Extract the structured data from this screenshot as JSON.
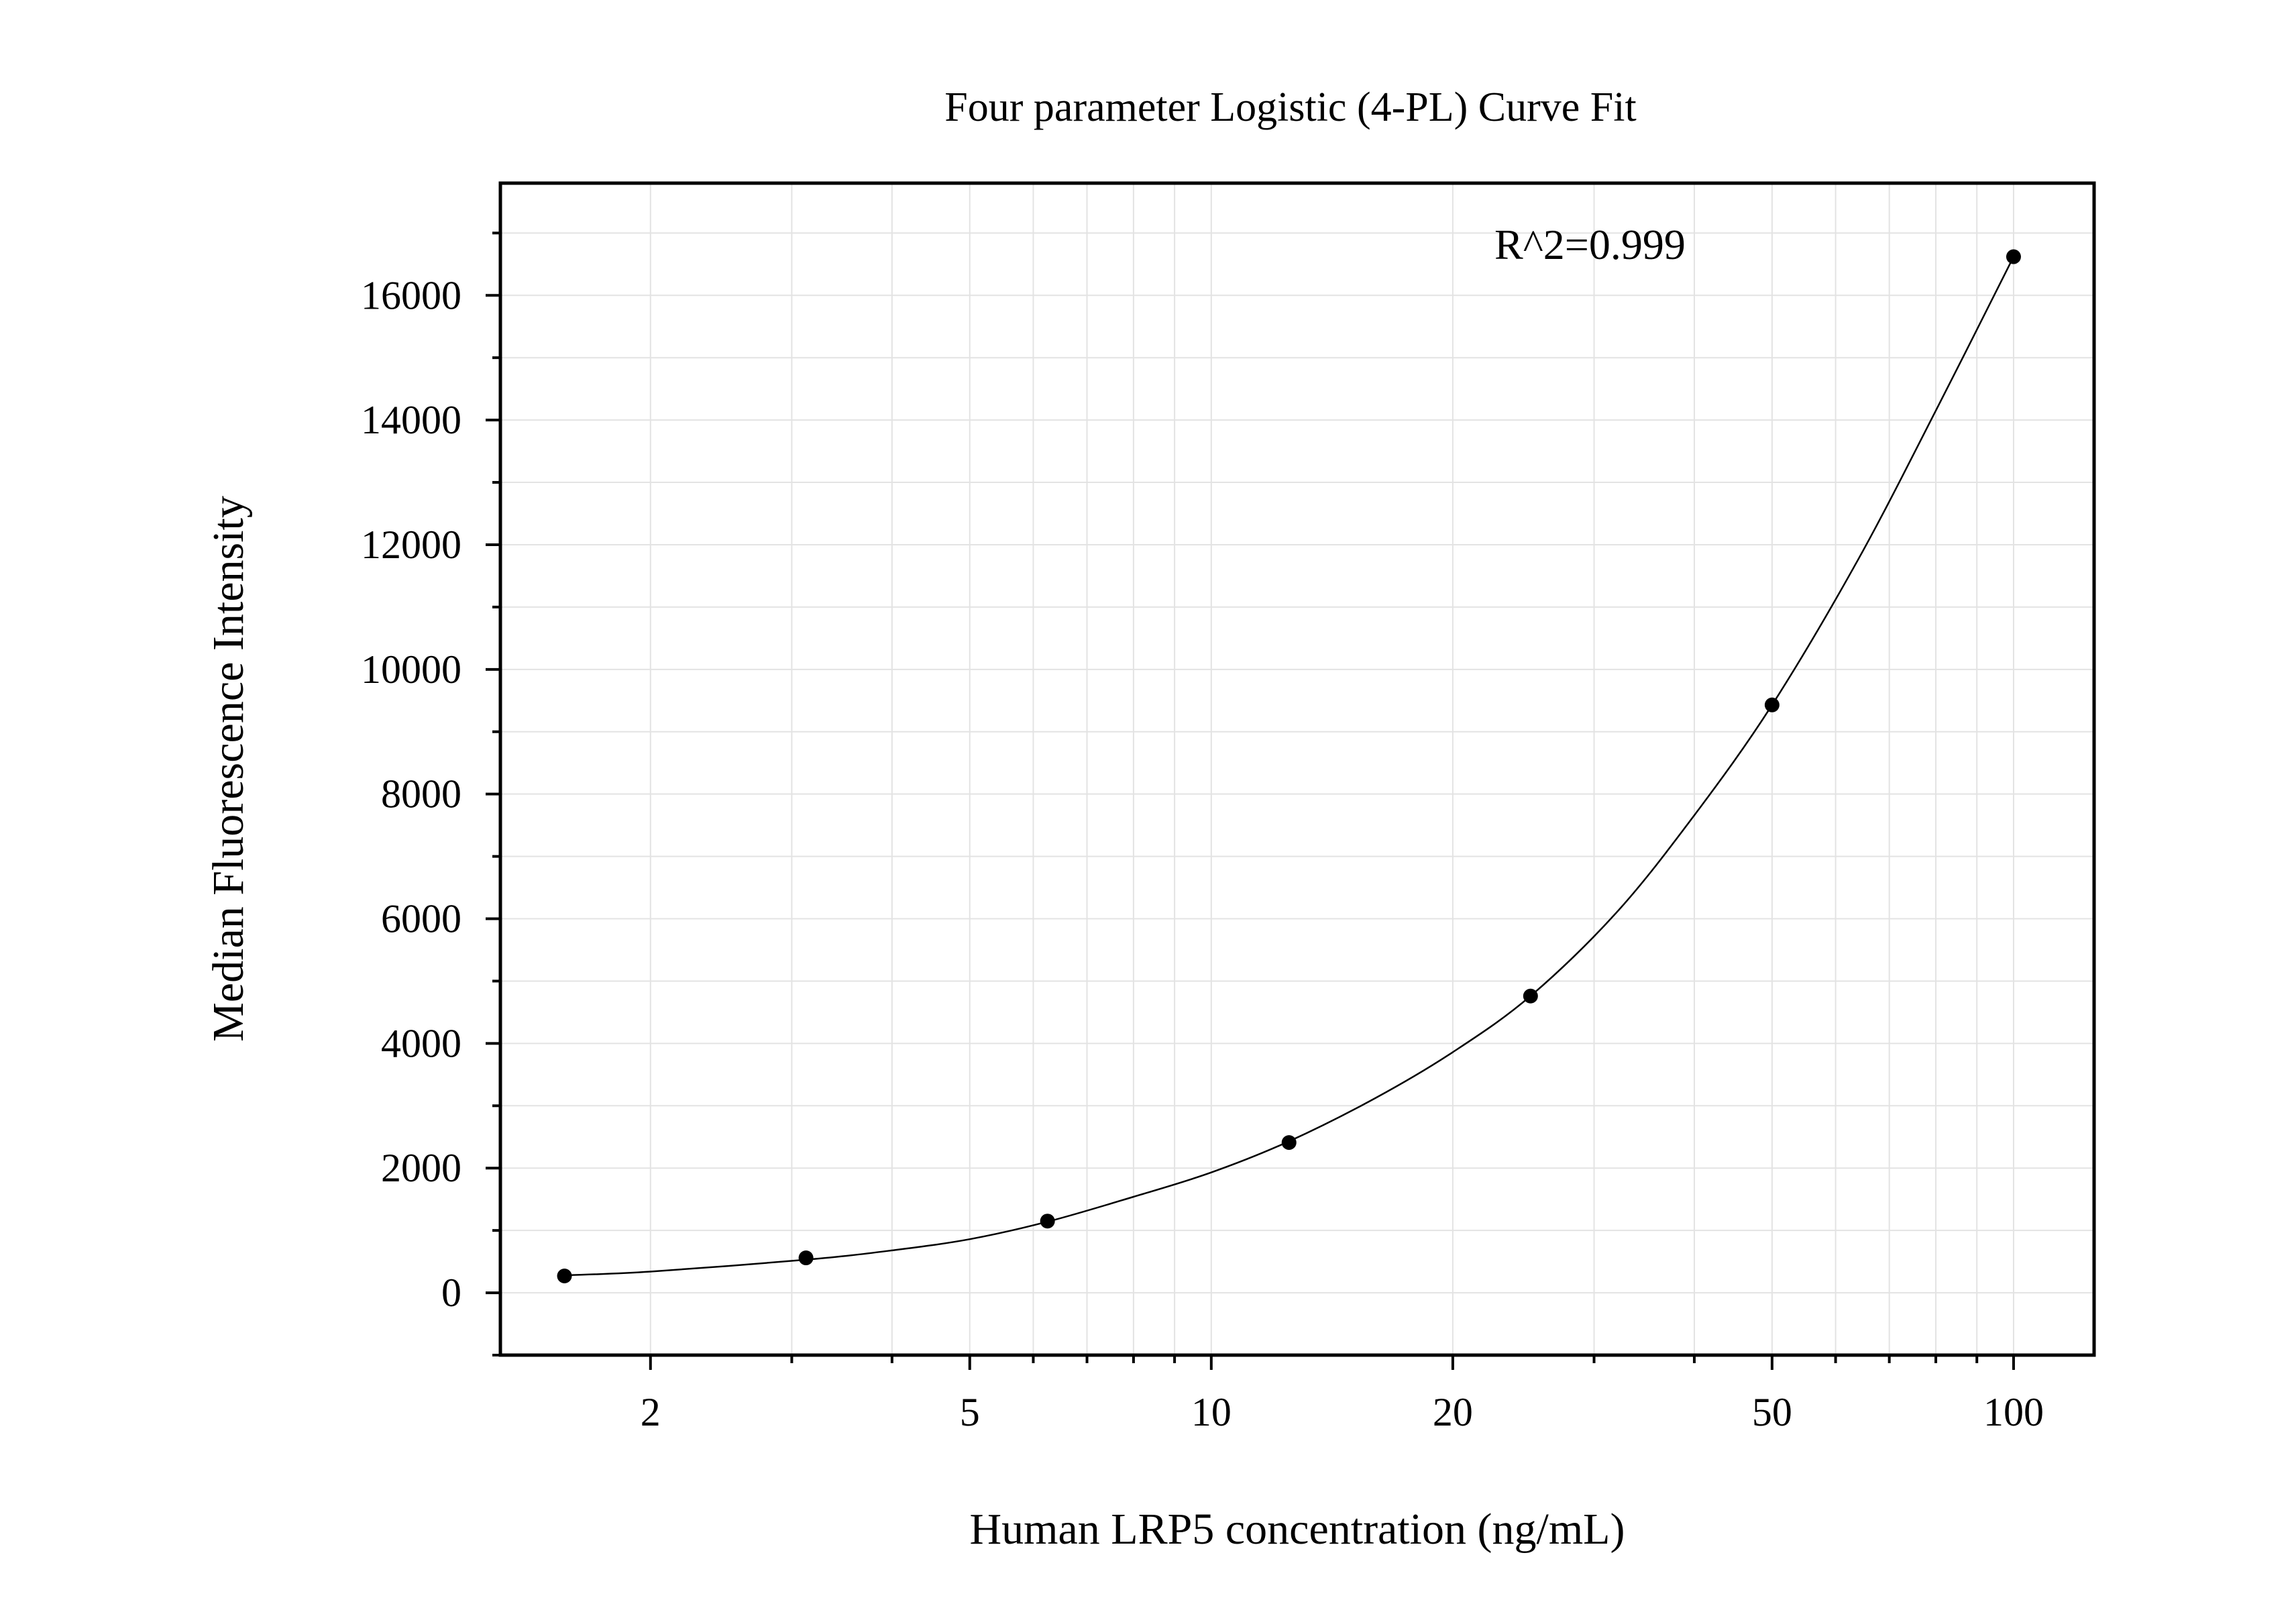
{
  "chart_data": {
    "type": "scatter",
    "title": "Four parameter Logistic (4-PL) Curve Fit",
    "xlabel": "Human LRP5 concentration (ng/mL)",
    "ylabel": "Median Fluorescence Intensity",
    "x_scale": "log",
    "xlim": [
      1.3,
      126
    ],
    "ylim": [
      -1000,
      17800
    ],
    "x_ticks": [
      2,
      5,
      10,
      20,
      50,
      100
    ],
    "x_tick_labels": [
      "2",
      "5",
      "10",
      "20",
      "50",
      "100"
    ],
    "y_ticks": [
      0,
      2000,
      4000,
      6000,
      8000,
      10000,
      12000,
      14000,
      16000
    ],
    "y_tick_labels": [
      "0",
      "2000",
      "4000",
      "6000",
      "8000",
      "10000",
      "12000",
      "14000",
      "16000"
    ],
    "grid": true,
    "annotation": "R^2=0.999",
    "series": [
      {
        "points": [
          {
            "x": 1.5625,
            "y": 270
          },
          {
            "x": 3.125,
            "y": 560
          },
          {
            "x": 6.25,
            "y": 1150
          },
          {
            "x": 12.5,
            "y": 2410
          },
          {
            "x": 25,
            "y": 4760
          },
          {
            "x": 50,
            "y": 9430
          },
          {
            "x": 100,
            "y": 16620
          }
        ]
      }
    ],
    "fit_curve": {
      "model": "4PL",
      "points": [
        {
          "x": 1.5625,
          "y": 280
        },
        {
          "x": 2,
          "y": 340
        },
        {
          "x": 3.125,
          "y": 530
        },
        {
          "x": 4,
          "y": 680
        },
        {
          "x": 5,
          "y": 860
        },
        {
          "x": 6.25,
          "y": 1140
        },
        {
          "x": 8,
          "y": 1540
        },
        {
          "x": 10,
          "y": 1930
        },
        {
          "x": 12.5,
          "y": 2430
        },
        {
          "x": 16,
          "y": 3120
        },
        {
          "x": 20,
          "y": 3860
        },
        {
          "x": 25,
          "y": 4760
        },
        {
          "x": 32,
          "y": 6100
        },
        {
          "x": 40,
          "y": 7660
        },
        {
          "x": 50,
          "y": 9430
        },
        {
          "x": 64,
          "y": 11760
        },
        {
          "x": 80,
          "y": 14150
        },
        {
          "x": 100,
          "y": 16620
        }
      ]
    },
    "colors": {
      "points": "#000000",
      "curve": "#000000",
      "grid": "#e3e3e3",
      "frame": "#000000"
    }
  }
}
